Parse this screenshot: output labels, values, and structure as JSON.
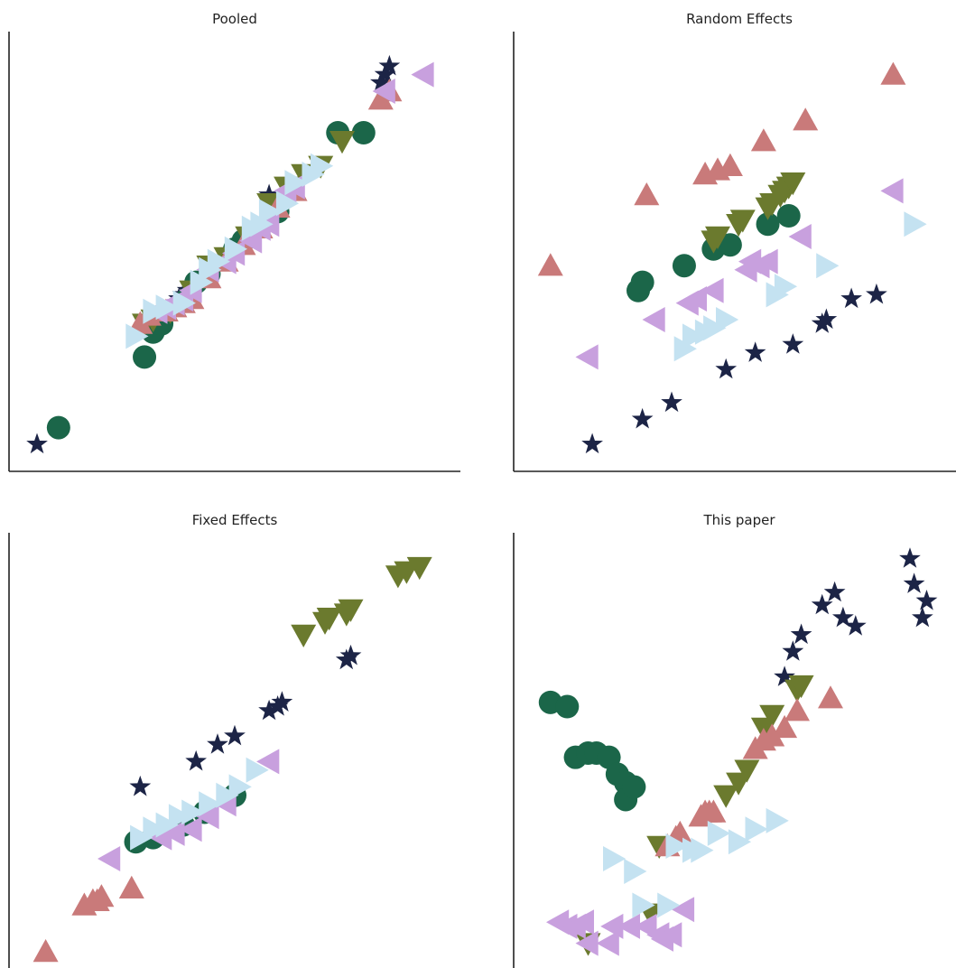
{
  "marker_colors": {
    "circle": "#1b6649",
    "triangle-up": "#c97a7a",
    "triangle-down": "#6b7a2e",
    "triangle-left": "#c8a0de",
    "triangle-right": "#c4e2f1",
    "star": "#1c2446"
  },
  "chart_data": [
    {
      "type": "scatter",
      "title": "Pooled",
      "xlim": [
        0,
        100
      ],
      "ylim": [
        0,
        100
      ],
      "grid": false,
      "series": [
        {
          "marker": "star",
          "x": [
            4,
            37,
            38,
            39,
            40,
            58,
            84,
            85,
            86
          ],
          "y": [
            5,
            40,
            41,
            42,
            43,
            65,
            92,
            94,
            96
          ]
        },
        {
          "marker": "circle",
          "x": [
            9,
            29,
            31,
            33,
            39,
            41,
            44,
            50,
            52,
            60,
            74,
            80
          ],
          "y": [
            9,
            26,
            32,
            34,
            40,
            44,
            46,
            52,
            54,
            61,
            80,
            80
          ]
        },
        {
          "marker": "triangle-down",
          "x": [
            29,
            31,
            35,
            40,
            44,
            48,
            53,
            58,
            62,
            66,
            70,
            75
          ],
          "y": [
            34,
            35,
            37,
            42,
            48,
            50,
            55,
            63,
            67,
            70,
            72,
            78
          ]
        },
        {
          "marker": "triangle-up",
          "x": [
            28,
            30,
            34,
            36,
            38,
            40,
            44,
            48,
            52,
            56,
            60,
            64,
            84,
            86
          ],
          "y": [
            34,
            36,
            37,
            38,
            39,
            40,
            45,
            49,
            53,
            57,
            62,
            66,
            88,
            90
          ]
        },
        {
          "marker": "triangle-left",
          "x": [
            32,
            34,
            36,
            38,
            40,
            44,
            48,
            50,
            54,
            56,
            58,
            62,
            64,
            85,
            94
          ],
          "y": [
            37,
            38,
            39,
            40,
            42,
            47,
            49,
            51,
            54,
            57,
            58,
            66,
            67,
            90,
            94
          ]
        },
        {
          "marker": "triangle-right",
          "x": [
            27,
            31,
            34,
            38,
            42,
            44,
            46,
            50,
            54,
            56,
            58,
            62,
            64,
            68,
            70
          ],
          "y": [
            31,
            37,
            38,
            39,
            44,
            47,
            49,
            52,
            57,
            58,
            61,
            63,
            68,
            70,
            72
          ]
        }
      ]
    },
    {
      "type": "scatter",
      "title": "Random Effects",
      "xlim": [
        0,
        100
      ],
      "ylim": [
        0,
        100
      ],
      "grid": false,
      "series": [
        {
          "marker": "star",
          "x": [
            16,
            28,
            35,
            48,
            55,
            64,
            71,
            72,
            78,
            84
          ],
          "y": [
            5,
            11,
            15,
            23,
            27,
            29,
            34,
            35,
            40,
            41
          ]
        },
        {
          "marker": "circle",
          "x": [
            27,
            28,
            38,
            45,
            49,
            58,
            63
          ],
          "y": [
            42,
            44,
            48,
            52,
            53,
            58,
            60
          ]
        },
        {
          "marker": "triangle-down",
          "x": [
            45,
            46,
            51,
            52,
            58,
            59,
            61,
            62,
            63,
            64
          ],
          "y": [
            54,
            55,
            58,
            59,
            62,
            63,
            65,
            66,
            67,
            68
          ]
        },
        {
          "marker": "triangle-up",
          "x": [
            6,
            29,
            43,
            46,
            49,
            57,
            67,
            88
          ],
          "y": [
            48,
            65,
            70,
            71,
            72,
            78,
            83,
            94
          ]
        },
        {
          "marker": "triangle-left",
          "x": [
            15,
            31,
            39,
            41,
            45,
            53,
            54,
            56,
            58,
            66,
            88
          ],
          "y": [
            26,
            35,
            39,
            40,
            42,
            47,
            49,
            48,
            49,
            55,
            66
          ]
        },
        {
          "marker": "triangle-right",
          "x": [
            38,
            40,
            43,
            45,
            48,
            60,
            62,
            72,
            93
          ],
          "y": [
            28,
            31,
            32,
            33,
            35,
            41,
            43,
            48,
            58
          ]
        }
      ]
    },
    {
      "type": "scatter",
      "title": "Fixed Effects",
      "xlim": [
        0,
        100
      ],
      "ylim": [
        0,
        100
      ],
      "grid": false,
      "series": [
        {
          "marker": "star",
          "x": [
            28,
            41,
            46,
            50,
            58,
            60,
            61,
            76,
            77
          ],
          "y": [
            42,
            48,
            52,
            54,
            60,
            61,
            62,
            72,
            73
          ]
        },
        {
          "marker": "circle",
          "x": [
            27,
            31,
            38,
            43,
            50
          ],
          "y": [
            29,
            30,
            33,
            36,
            40
          ]
        },
        {
          "marker": "triangle-down",
          "x": [
            66,
            71,
            72,
            76,
            77,
            88,
            90,
            93
          ],
          "y": [
            78,
            81,
            82,
            83,
            84,
            92,
            93,
            94
          ]
        },
        {
          "marker": "triangle-up",
          "x": [
            6,
            15,
            17,
            18,
            19,
            26
          ],
          "y": [
            3,
            14,
            15,
            15,
            16,
            18
          ]
        },
        {
          "marker": "triangle-left",
          "x": [
            21,
            33,
            36,
            40,
            44,
            48,
            58
          ],
          "y": [
            25,
            30,
            31,
            32,
            35,
            38,
            48
          ]
        },
        {
          "marker": "triangle-right",
          "x": [
            28,
            31,
            34,
            37,
            40,
            44,
            48,
            51,
            55
          ],
          "y": [
            30,
            32,
            33,
            35,
            36,
            38,
            40,
            42,
            46
          ]
        }
      ]
    },
    {
      "type": "scatter",
      "title": "This paper",
      "xlim": [
        0,
        100
      ],
      "ylim": [
        0,
        100
      ],
      "grid": false,
      "series": [
        {
          "marker": "star",
          "x": [
            62,
            64,
            66,
            71,
            74,
            76,
            79,
            92,
            93,
            95,
            96
          ],
          "y": [
            68,
            74,
            78,
            85,
            88,
            82,
            80,
            96,
            90,
            82,
            86
          ]
        },
        {
          "marker": "circle",
          "x": [
            6,
            10,
            12,
            15,
            17,
            20,
            22,
            24,
            24,
            26
          ],
          "y": [
            62,
            61,
            49,
            50,
            50,
            49,
            45,
            43,
            39,
            42
          ]
        },
        {
          "marker": "triangle-down",
          "x": [
            15,
            30,
            32,
            48,
            51,
            53,
            57,
            59,
            65,
            66
          ],
          "y": [
            5,
            12,
            28,
            40,
            43,
            46,
            56,
            59,
            65,
            66
          ]
        },
        {
          "marker": "triangle-up",
          "x": [
            34,
            36,
            37,
            42,
            43,
            44,
            45,
            55,
            57,
            59,
            62,
            65,
            73
          ],
          "y": [
            28,
            30,
            31,
            35,
            36,
            36,
            36,
            51,
            53,
            54,
            56,
            60,
            63
          ]
        },
        {
          "marker": "triangle-left",
          "x": [
            8,
            10,
            12,
            14,
            15,
            20,
            21,
            25,
            29,
            32,
            33,
            35,
            38
          ],
          "y": [
            10,
            9,
            9,
            10,
            5,
            5,
            9,
            9,
            9,
            7,
            6,
            7,
            13
          ]
        },
        {
          "marker": "triangle-right",
          "x": [
            21,
            26,
            28,
            34,
            36,
            40,
            42,
            46,
            51,
            55,
            60
          ],
          "y": [
            25,
            22,
            14,
            14,
            28,
            27,
            27,
            31,
            29,
            32,
            34
          ]
        }
      ]
    }
  ]
}
